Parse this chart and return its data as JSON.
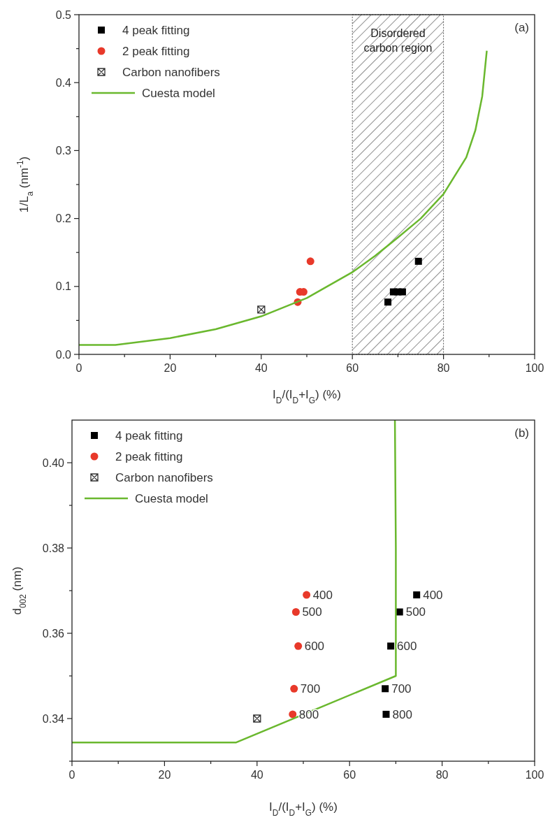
{
  "chart_data": [
    {
      "type": "scatter",
      "xlabel": "I$_{D}$/(I$_{D}$+I$_{G}$) (%)",
      "ylabel": "1/L$_{a}$ (nm$^{-1}$)",
      "xlim": [
        0,
        100
      ],
      "ylim": [
        0,
        0.5
      ],
      "xticks": [
        0,
        {
          "value": 10,
          "label": null
        },
        20,
        {
          "value": 30,
          "label": null
        },
        40,
        {
          "value": 50,
          "label": null
        },
        60,
        {
          "value": 70,
          "label": null
        },
        80,
        {
          "value": 90,
          "label": null
        },
        100
      ],
      "yticks": [
        {
          "value": 0,
          "label": "0.0"
        },
        {
          "value": 0.05,
          "label": null
        },
        0.1,
        {
          "value": 0.15,
          "label": null
        },
        0.2,
        {
          "value": 0.25,
          "label": null
        },
        0.3,
        {
          "value": 0.35,
          "label": null
        },
        0.4,
        {
          "value": 0.45,
          "label": null
        },
        0.5
      ],
      "legend": "top left",
      "grid": false,
      "bands": [
        {
          "axis": "x",
          "from": 60,
          "to": 80,
          "label": "Disordered carbon region"
        }
      ],
      "annotations": [
        "(a)"
      ],
      "series": [
        {
          "name": "4 peak fitting",
          "marker": "square",
          "color": "#000000",
          "x": [
            67.8,
            69,
            70,
            71,
            74.5
          ],
          "values": [
            0.077,
            0.092,
            0.092,
            0.092,
            0.137
          ]
        },
        {
          "name": "2 peak fitting",
          "marker": "circle",
          "color": "#e8392a",
          "x": [
            48,
            48.5,
            49.3,
            50.8
          ],
          "values": [
            0.077,
            0.092,
            0.092,
            0.137
          ]
        },
        {
          "name": "Carbon nanofibers",
          "marker": "cross",
          "color": "#333333",
          "x": [
            40
          ],
          "values": [
            0.066
          ]
        },
        {
          "name": "Cuesta model",
          "type": "line",
          "marker": "none",
          "color": "#6ab82e",
          "x": [
            0,
            8,
            20,
            30,
            40,
            50,
            60,
            65,
            70,
            75,
            80,
            85,
            87,
            88.5,
            89.5
          ],
          "values": [
            0.014,
            0.014,
            0.024,
            0.037,
            0.056,
            0.083,
            0.121,
            0.145,
            0.172,
            0.2,
            0.236,
            0.29,
            0.33,
            0.38,
            0.447
          ]
        }
      ]
    },
    {
      "type": "scatter",
      "xlabel": "I$_{D}$/(I$_{D}$+I$_{G}$) (%)",
      "ylabel": "d$_{002}$ (nm)",
      "xlim": [
        0,
        100
      ],
      "ylim": [
        0.33,
        0.41
      ],
      "xticks": [
        0,
        {
          "value": 10,
          "label": null
        },
        20,
        {
          "value": 30,
          "label": null
        },
        40,
        {
          "value": 50,
          "label": null
        },
        60,
        {
          "value": 70,
          "label": null
        },
        80,
        {
          "value": 90,
          "label": null
        },
        100
      ],
      "yticks": [
        {
          "value": 0.33,
          "label": null
        },
        0.34,
        {
          "value": 0.35,
          "label": null
        },
        0.36,
        {
          "value": 0.37,
          "label": null
        },
        0.38,
        {
          "value": 0.39,
          "label": null
        },
        {
          "value": 0.4,
          "label": "0.40"
        }
      ],
      "legend": "top left",
      "grid": false,
      "annotations": [
        "(b)",
        {
          "text": "400",
          "x": 50.7,
          "y": 0.369
        },
        {
          "text": "500",
          "x": 48.4,
          "y": 0.365
        },
        {
          "text": "600",
          "x": 48.9,
          "y": 0.357
        },
        {
          "text": "700",
          "x": 48,
          "y": 0.347
        },
        {
          "text": "800",
          "x": 47.7,
          "y": 0.341
        },
        {
          "text": "400",
          "x": 74.5,
          "y": 0.369
        },
        {
          "text": "500",
          "x": 70.8,
          "y": 0.365
        },
        {
          "text": "600",
          "x": 68.9,
          "y": 0.357
        },
        {
          "text": "700",
          "x": 67.7,
          "y": 0.347
        },
        {
          "text": "800",
          "x": 67.9,
          "y": 0.341
        }
      ],
      "series": [
        {
          "name": "4 peak fitting",
          "marker": "square",
          "color": "#000000",
          "x": [
            74.5,
            70.8,
            68.9,
            67.7,
            67.9
          ],
          "values": [
            0.369,
            0.365,
            0.357,
            0.347,
            0.341
          ]
        },
        {
          "name": "2 peak fitting",
          "marker": "circle",
          "color": "#e8392a",
          "x": [
            50.7,
            48.4,
            48.9,
            48,
            47.7
          ],
          "values": [
            0.369,
            0.365,
            0.357,
            0.347,
            0.341
          ]
        },
        {
          "name": "Carbon nanofibers",
          "marker": "cross",
          "color": "#333333",
          "x": [
            40
          ],
          "values": [
            0.34
          ]
        },
        {
          "name": "Cuesta model",
          "type": "line",
          "marker": "none",
          "color": "#6ab82e",
          "x": [
            0,
            35.5,
            70,
            70,
            69.8
          ],
          "values": [
            0.3344,
            0.3344,
            0.35,
            0.38,
            0.41
          ]
        }
      ]
    }
  ]
}
